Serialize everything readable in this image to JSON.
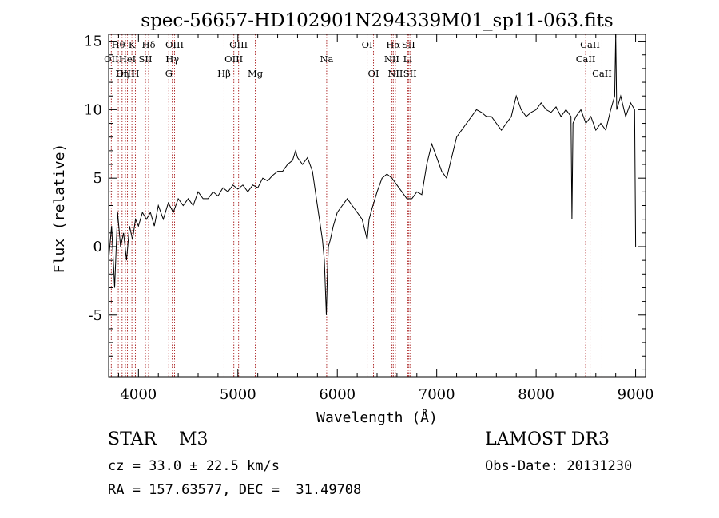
{
  "chart_data": {
    "type": "line",
    "title": "spec-56657-HD102901N294339M01_sp11-063.fits",
    "xlabel": "Wavelength (Å)",
    "ylabel": "Flux (relative)",
    "xlim": [
      3700,
      9100
    ],
    "ylim": [
      -9.5,
      15.5
    ],
    "xticks": [
      4000,
      5000,
      6000,
      7000,
      8000,
      9000
    ],
    "yticks": [
      -5,
      0,
      5,
      10,
      15
    ],
    "grid": false,
    "legend": "none",
    "series": [
      {
        "line_color": "#000000",
        "x": [
          3700,
          3730,
          3760,
          3790,
          3820,
          3850,
          3880,
          3910,
          3940,
          3970,
          4000,
          4040,
          4080,
          4120,
          4160,
          4200,
          4250,
          4300,
          4350,
          4400,
          4450,
          4500,
          4550,
          4600,
          4650,
          4700,
          4750,
          4800,
          4850,
          4900,
          4950,
          5000,
          5050,
          5100,
          5150,
          5200,
          5250,
          5300,
          5350,
          5400,
          5450,
          5500,
          5550,
          5580,
          5600,
          5650,
          5700,
          5750,
          5800,
          5850,
          5870,
          5890,
          5900,
          5910,
          5930,
          5960,
          6000,
          6050,
          6100,
          6150,
          6200,
          6250,
          6300,
          6320,
          6350,
          6400,
          6450,
          6500,
          6550,
          6600,
          6650,
          6700,
          6750,
          6800,
          6850,
          6900,
          6950,
          7000,
          7050,
          7100,
          7150,
          7200,
          7250,
          7300,
          7350,
          7400,
          7450,
          7500,
          7550,
          7600,
          7650,
          7700,
          7750,
          7800,
          7850,
          7900,
          7950,
          8000,
          8050,
          8100,
          8150,
          8200,
          8250,
          8300,
          8350,
          8360,
          8370,
          8400,
          8450,
          8500,
          8550,
          8600,
          8650,
          8700,
          8750,
          8790,
          8800,
          8810,
          8850,
          8900,
          8950,
          8990,
          9000
        ],
        "y": [
          -1,
          1.5,
          -3,
          2.5,
          0,
          1,
          -1,
          1.5,
          0.5,
          2,
          1.5,
          2.5,
          2,
          2.5,
          1.5,
          3,
          2,
          3.2,
          2.5,
          3.5,
          3,
          3.5,
          3,
          4,
          3.5,
          3.5,
          4,
          3.7,
          4.3,
          4,
          4.5,
          4.2,
          4.5,
          4,
          4.5,
          4.3,
          5,
          4.8,
          5.2,
          5.5,
          5.5,
          6,
          6.3,
          7,
          6.5,
          6,
          6.5,
          5.5,
          3,
          0.5,
          -1,
          -5,
          -2,
          0,
          0.5,
          1.5,
          2.5,
          3,
          3.5,
          3,
          2.5,
          2,
          0.5,
          2,
          2.8,
          4,
          5,
          5.3,
          5,
          4.5,
          4,
          3.5,
          3.5,
          4,
          3.8,
          6,
          7.5,
          6.5,
          5.5,
          5,
          6.5,
          8,
          8.5,
          9,
          9.5,
          10,
          9.8,
          9.5,
          9.5,
          9,
          8.5,
          9,
          9.5,
          11,
          10,
          9.5,
          9.8,
          10,
          10.5,
          10,
          9.8,
          10.2,
          9.5,
          10,
          9.5,
          2,
          9,
          9.5,
          10,
          9,
          9.5,
          8.5,
          9,
          8.5,
          10,
          11,
          15.5,
          10,
          11,
          9.5,
          10.5,
          10,
          0
        ]
      }
    ],
    "lines": [
      {
        "label": "Hθ",
        "x": 3797,
        "row": 0
      },
      {
        "label": "OII",
        "x": 3727,
        "row": 1
      },
      {
        "label": "OIII",
        "x": 3869,
        "row": 2
      },
      {
        "label": "K",
        "x": 3934,
        "row": 0
      },
      {
        "label": "HeI",
        "x": 3889,
        "row": 1
      },
      {
        "label": "Hη",
        "x": 3835,
        "row": 2
      },
      {
        "label": "SII",
        "x": 4070,
        "row": 1
      },
      {
        "label": "H",
        "x": 3969,
        "row": 2
      },
      {
        "label": "Hδ",
        "x": 4102,
        "row": 0
      },
      {
        "label": "OIII",
        "x": 4363,
        "row": 0
      },
      {
        "label": "Hγ",
        "x": 4340,
        "row": 1
      },
      {
        "label": "G",
        "x": 4305,
        "row": 2
      },
      {
        "label": "OIII",
        "x": 5007,
        "row": 0
      },
      {
        "label": "OIII",
        "x": 4959,
        "row": 1
      },
      {
        "label": "Hβ",
        "x": 4861,
        "row": 2
      },
      {
        "label": "Mg",
        "x": 5175,
        "row": 2
      },
      {
        "label": "Na",
        "x": 5893,
        "row": 1
      },
      {
        "label": "OI",
        "x": 6300,
        "row": 0
      },
      {
        "label": "OI",
        "x": 6364,
        "row": 2
      },
      {
        "label": "Hα",
        "x": 6563,
        "row": 0
      },
      {
        "label": "SII",
        "x": 6716,
        "row": 0
      },
      {
        "label": "NII",
        "x": 6548,
        "row": 1
      },
      {
        "label": "Li",
        "x": 6708,
        "row": 1
      },
      {
        "label": "NII",
        "x": 6584,
        "row": 2
      },
      {
        "label": "SII",
        "x": 6731,
        "row": 2
      },
      {
        "label": "CaII",
        "x": 8542,
        "row": 0
      },
      {
        "label": "CaII",
        "x": 8498,
        "row": 1
      },
      {
        "label": "CaII",
        "x": 8662,
        "row": 2
      }
    ]
  },
  "info": {
    "class_line": "STAR    M3",
    "survey": "LAMOST DR3",
    "cz": "cz = 33.0 ± 22.5 km/s",
    "obs_date": "Obs-Date: 20131230",
    "radec": "RA = 157.63577, DEC =  31.49708"
  }
}
